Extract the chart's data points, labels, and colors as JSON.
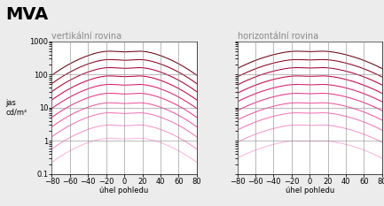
{
  "title": "MVA",
  "subtitle_left": "vertikální rovina",
  "subtitle_right": "horizontální rovina",
  "xlabel": "úhel pohledu",
  "ylabel": "jas\ncd/m²",
  "xlim": [
    -80,
    80
  ],
  "ylim_log": [
    0.1,
    1000
  ],
  "xticks": [
    -80,
    -60,
    -40,
    -20,
    0,
    20,
    40,
    60,
    80
  ],
  "yticks": [
    0.1,
    1,
    10,
    100,
    1000
  ],
  "ytick_labels": [
    "0.1",
    "1",
    "10",
    "100",
    "1000"
  ],
  "background_color": "#ececec",
  "title_fontsize": 14,
  "label_fontsize": 6,
  "subtitle_fontsize": 7,
  "tick_fontsize": 6,
  "curve_colors": [
    "#6b0010",
    "#8b0020",
    "#aa0035",
    "#c8004a",
    "#de1a6a",
    "#e83585",
    "#ef559e",
    "#f375b5",
    "#f795ca",
    "#fbb5df"
  ],
  "n_curves": 10,
  "vert_peaks": [
    500,
    280,
    160,
    90,
    50,
    27,
    14,
    7,
    3,
    1.2
  ],
  "horiz_peaks": [
    500,
    280,
    160,
    90,
    50,
    27,
    14,
    7,
    3,
    1.0
  ]
}
